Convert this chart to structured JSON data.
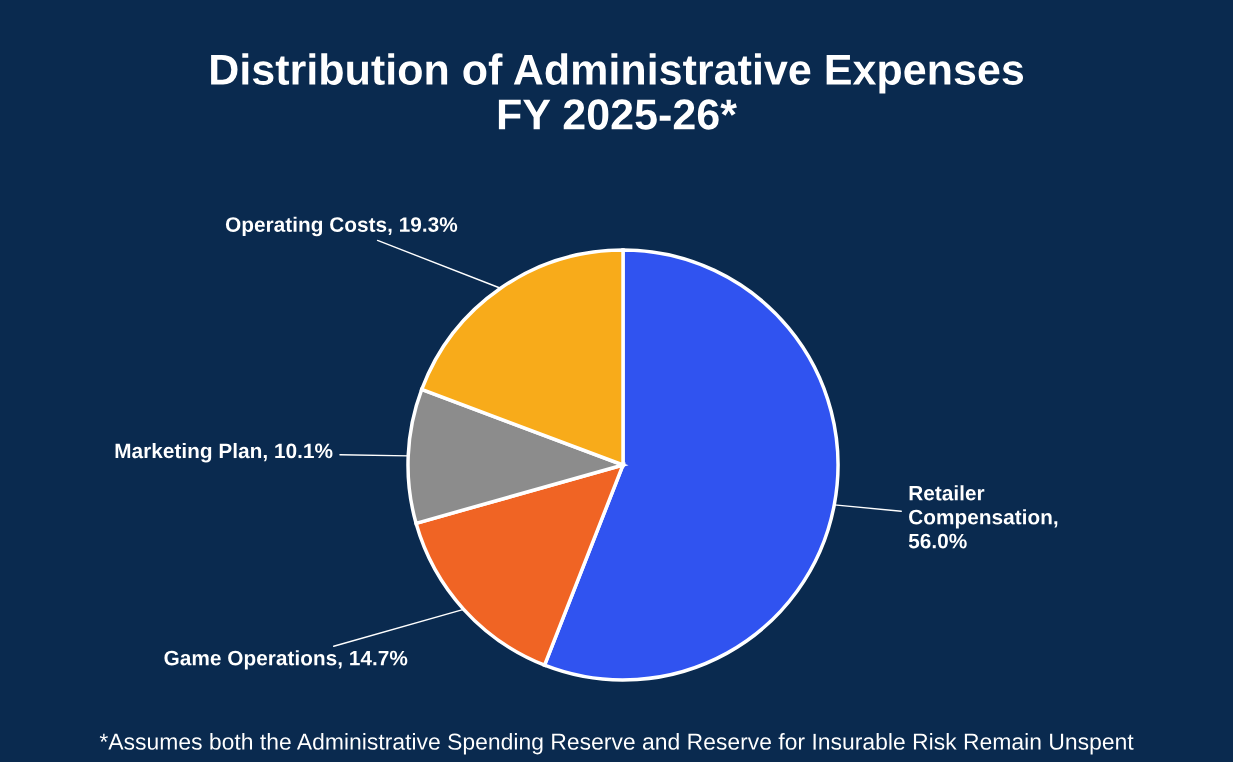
{
  "chart_data": {
    "type": "pie",
    "title": "Distribution of Administrative Expenses\nFY 2025-26*",
    "categories": [
      "Retailer Compensation, 56.0%",
      "Game Operations, 14.7%",
      "Marketing Plan, 10.1%",
      "Operating Costs, 19.3%"
    ],
    "values": [
      56.0,
      14.7,
      10.1,
      19.3
    ],
    "colors": [
      "#3053f0",
      "#f06424",
      "#8c8c8c",
      "#f8ab1a"
    ],
    "annotations": [
      "*Assumes both the Administrative Spending Reserve and Reserve for Insurable Risk Remain Unspent"
    ]
  }
}
